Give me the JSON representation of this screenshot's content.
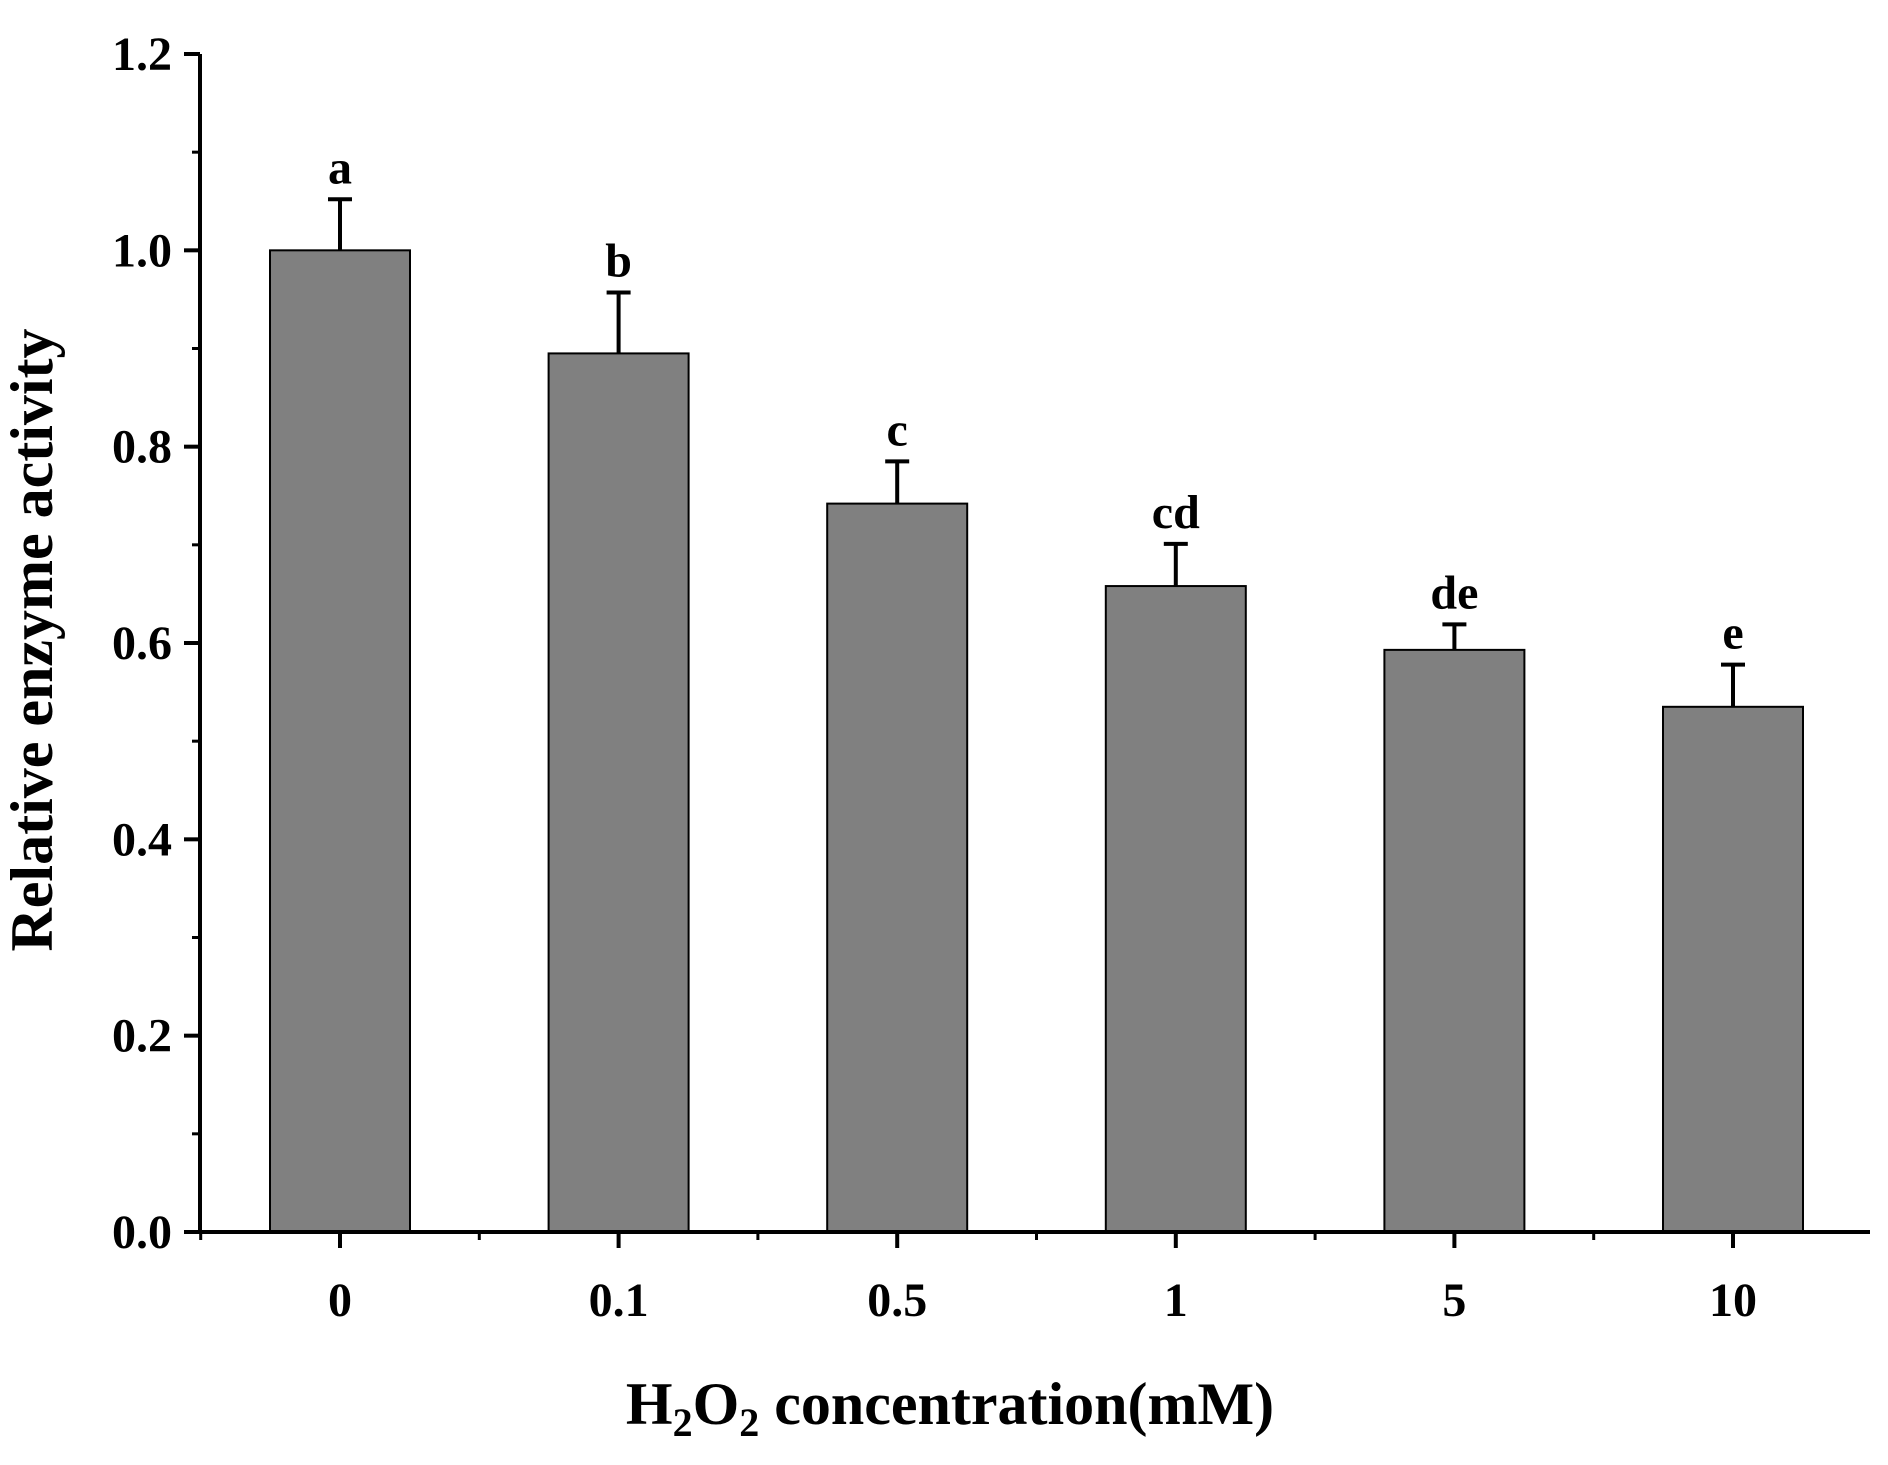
{
  "chart_data": {
    "type": "bar",
    "title": "",
    "xlabel": {
      "prefix": "H",
      "sub1": "2",
      "mid": "O",
      "sub2": "2",
      "suffix": " concentration(mM)"
    },
    "ylabel": "Relative enzyme activity",
    "categories": [
      "0",
      "0.1",
      "0.5",
      "1",
      "5",
      "10"
    ],
    "series": [
      {
        "values": [
          1.0,
          0.895,
          0.742,
          0.658,
          0.593,
          0.535
        ],
        "errors": [
          0.052,
          0.062,
          0.043,
          0.043,
          0.026,
          0.043
        ],
        "significance": [
          "a",
          "b",
          "c",
          "cd",
          "de",
          "e"
        ],
        "color": "#808080"
      }
    ],
    "ylim": [
      0,
      1.2
    ],
    "yticks": [
      "0.0",
      "0.2",
      "0.4",
      "0.6",
      "0.8",
      "1.0",
      "1.2"
    ],
    "grid": false,
    "legend": "none"
  }
}
